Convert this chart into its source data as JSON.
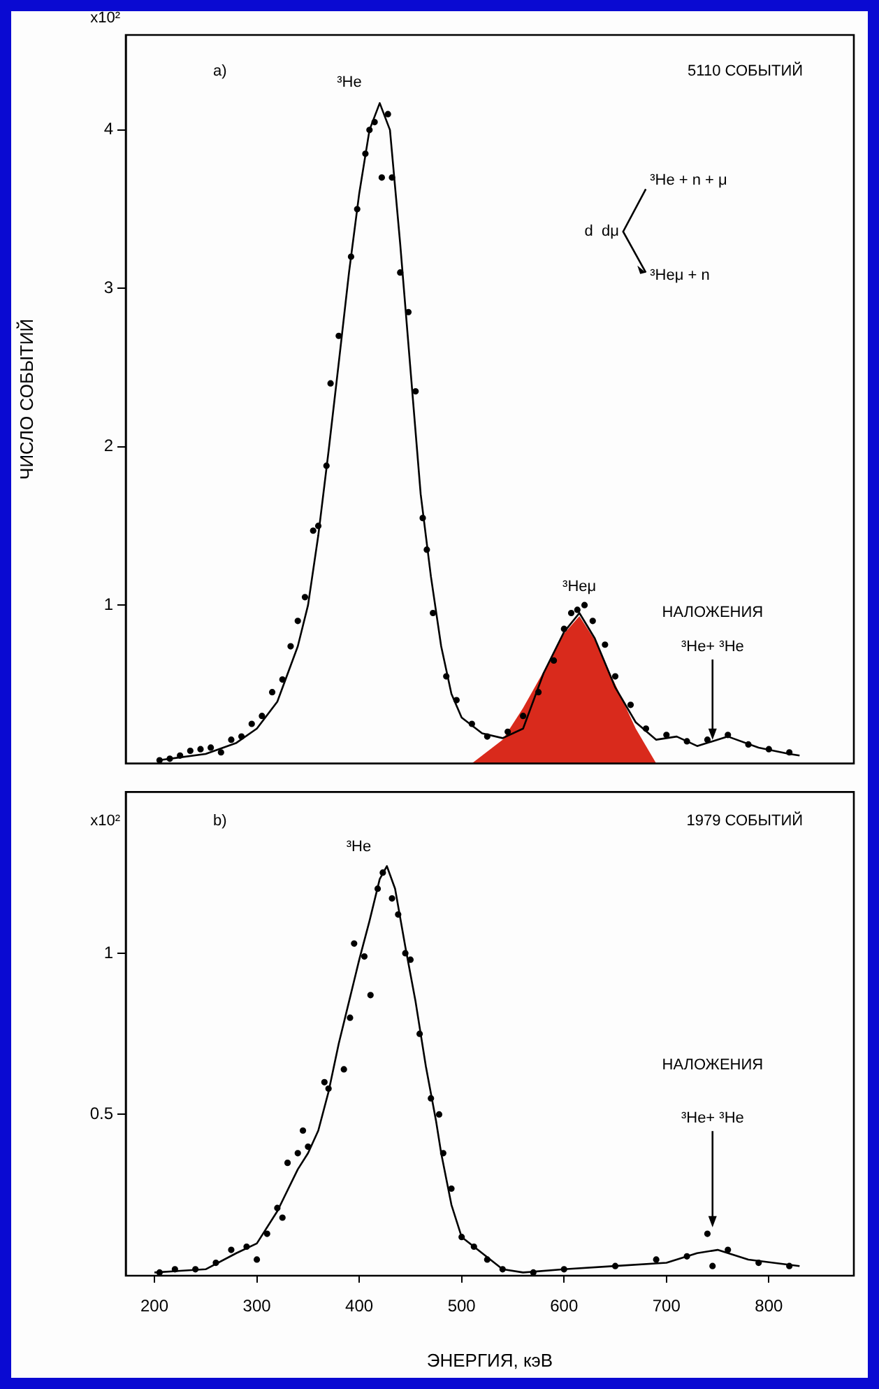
{
  "chart_data": [
    {
      "type": "line",
      "ylabel": "ЧИСЛО СОБЫТИЙ",
      "xlim": [
        172,
        883
      ],
      "ylim": [
        0,
        4.6
      ],
      "xticks": [
        200,
        300,
        400,
        500,
        600,
        700,
        800
      ],
      "yticks": [
        1,
        2,
        3,
        4
      ],
      "tick_labels": "y",
      "grid": false,
      "legend": false,
      "annotations": [
        "x10²",
        "a)",
        "5110 СОБЫТИЙ",
        "d  dμ",
        "³He + n + μ",
        "³Heμ + n",
        "³He",
        "³Heμ",
        "НАЛОЖЕНИЯ",
        {
          "text": "³He+ ³He",
          "x": 745,
          "y": 0.15
        }
      ],
      "series": [
        {
          "type": "area",
          "color": "#d92a1c",
          "x": [
            510,
            540,
            560,
            580,
            600,
            615,
            630,
            650,
            670,
            690
          ],
          "values": [
            0,
            0.15,
            0.35,
            0.58,
            0.82,
            0.93,
            0.78,
            0.5,
            0.22,
            0
          ]
        },
        {
          "type": "line",
          "color": "#000000",
          "marker": "none",
          "x": [
            204,
            250,
            280,
            300,
            320,
            340,
            350,
            360,
            370,
            380,
            390,
            400,
            410,
            420,
            430,
            440,
            450,
            460,
            470,
            480,
            490,
            500,
            520,
            540,
            560,
            580,
            600,
            615,
            630,
            650,
            670,
            690,
            710,
            730,
            760,
            790,
            820,
            830
          ],
          "values": [
            0.02,
            0.06,
            0.13,
            0.22,
            0.39,
            0.74,
            1.0,
            1.44,
            1.97,
            2.53,
            3.1,
            3.6,
            4.0,
            4.17,
            4.0,
            3.28,
            2.49,
            1.7,
            1.18,
            0.74,
            0.44,
            0.29,
            0.19,
            0.16,
            0.22,
            0.57,
            0.83,
            0.95,
            0.79,
            0.48,
            0.26,
            0.15,
            0.17,
            0.11,
            0.17,
            0.1,
            0.06,
            0.05
          ]
        },
        {
          "type": "scatter",
          "color": "#000000",
          "marker": "circle",
          "x": [
            205,
            215,
            225,
            235,
            245,
            255,
            265,
            275,
            285,
            295,
            305,
            315,
            325,
            333,
            340,
            347,
            355,
            360,
            368,
            372,
            380,
            392,
            398,
            406,
            410,
            415,
            422,
            428,
            432,
            440,
            448,
            455,
            462,
            466,
            472,
            485,
            495,
            510,
            525,
            545,
            560,
            575,
            590,
            600,
            607,
            613,
            620,
            628,
            640,
            650,
            665,
            680,
            700,
            720,
            740,
            760,
            780,
            800,
            820
          ],
          "values": [
            0.02,
            0.03,
            0.05,
            0.08,
            0.09,
            0.1,
            0.07,
            0.15,
            0.17,
            0.25,
            0.3,
            0.45,
            0.53,
            0.74,
            0.9,
            1.05,
            1.47,
            1.5,
            1.88,
            2.4,
            2.7,
            3.2,
            3.5,
            3.85,
            4.0,
            4.05,
            3.7,
            4.1,
            3.7,
            3.1,
            2.85,
            2.35,
            1.55,
            1.35,
            0.95,
            0.55,
            0.4,
            0.25,
            0.17,
            0.2,
            0.3,
            0.45,
            0.65,
            0.85,
            0.95,
            0.97,
            1.0,
            0.9,
            0.75,
            0.55,
            0.37,
            0.22,
            0.18,
            0.14,
            0.15,
            0.18,
            0.12,
            0.09,
            0.07
          ]
        }
      ]
    },
    {
      "type": "line",
      "xlabel": "ЭНЕРГИЯ, кэВ",
      "xlim": [
        172,
        883
      ],
      "ylim": [
        0,
        1.5
      ],
      "xticks": [
        200,
        300,
        400,
        500,
        600,
        700,
        800
      ],
      "yticks": [
        0.5,
        1
      ],
      "grid": false,
      "legend": false,
      "annotations": [
        "x10²",
        "b)",
        "1979 СОБЫТИЙ",
        "³He",
        "НАЛОЖЕНИЯ",
        {
          "text": "³He+ ³He",
          "x": 745,
          "y": 0.15
        }
      ],
      "series": [
        {
          "type": "line",
          "color": "#000000",
          "marker": "none",
          "x": [
            200,
            250,
            280,
            300,
            320,
            340,
            350,
            360,
            370,
            380,
            390,
            400,
            410,
            420,
            427,
            435,
            445,
            455,
            465,
            475,
            480,
            490,
            500,
            520,
            540,
            560,
            600,
            650,
            700,
            730,
            750,
            780,
            830
          ],
          "values": [
            0.01,
            0.02,
            0.07,
            0.1,
            0.2,
            0.33,
            0.38,
            0.45,
            0.57,
            0.72,
            0.85,
            0.98,
            1.1,
            1.23,
            1.27,
            1.2,
            1.02,
            0.85,
            0.65,
            0.48,
            0.38,
            0.22,
            0.12,
            0.07,
            0.02,
            0.01,
            0.02,
            0.03,
            0.04,
            0.07,
            0.08,
            0.05,
            0.03
          ]
        },
        {
          "type": "scatter",
          "color": "#000000",
          "marker": "circle",
          "x": [
            205,
            220,
            240,
            260,
            275,
            290,
            300,
            310,
            320,
            325,
            330,
            340,
            345,
            350,
            366,
            370,
            385,
            391,
            395,
            405,
            411,
            418,
            423,
            432,
            438,
            445,
            450,
            459,
            470,
            478,
            482,
            490,
            500,
            512,
            525,
            540,
            570,
            600,
            650,
            690,
            720,
            740,
            745,
            760,
            790,
            820
          ],
          "values": [
            0.01,
            0.02,
            0.02,
            0.04,
            0.08,
            0.09,
            0.05,
            0.13,
            0.21,
            0.18,
            0.35,
            0.38,
            0.45,
            0.4,
            0.6,
            0.58,
            0.64,
            0.8,
            1.03,
            0.99,
            0.87,
            1.2,
            1.25,
            1.17,
            1.12,
            1.0,
            0.98,
            0.75,
            0.55,
            0.5,
            0.38,
            0.27,
            0.12,
            0.09,
            0.05,
            0.02,
            0.01,
            0.02,
            0.03,
            0.05,
            0.06,
            0.13,
            0.03,
            0.08,
            0.04,
            0.03
          ]
        }
      ]
    }
  ]
}
